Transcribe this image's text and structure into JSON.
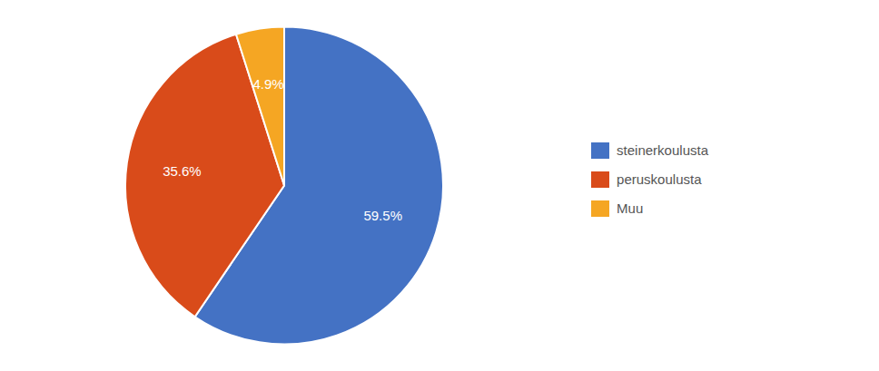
{
  "chart_data": {
    "type": "pie",
    "categories": [
      "steinerkoulusta",
      "peruskoulusta",
      "Muu"
    ],
    "values": [
      59.5,
      35.6,
      4.9
    ],
    "value_labels": [
      "59.5%",
      "35.6%",
      "4.9%"
    ],
    "colors": [
      "#4472C4",
      "#D94B1A",
      "#F5A623"
    ],
    "data_labels": true,
    "legend": "right"
  }
}
